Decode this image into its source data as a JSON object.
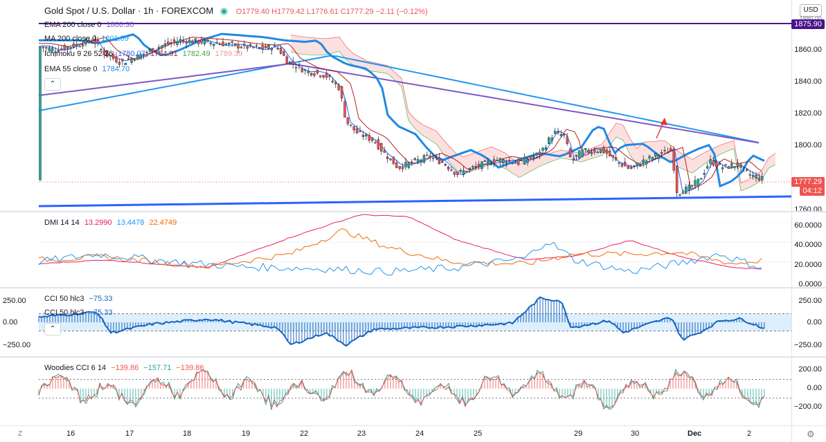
{
  "symbol": {
    "name": "Gold Spot / U.S. Dollar · 1h · FOREXCOM"
  },
  "ohlc": {
    "o": "O1779.40",
    "h": "H1779.42",
    "l": "L1776.61",
    "c": "C1777.29",
    "chg": "−2.11 (−0.12%)"
  },
  "indicators": {
    "ema200": {
      "label": "EMA 200 close 0",
      "value": "1800.30"
    },
    "ma200": {
      "label": "MA 200 close 0",
      "value": "1801.09"
    },
    "ichimoku": {
      "label": "Ichimoku 9 26 52 26",
      "v1": "1780.07",
      "v2": "1784.91",
      "v3": "1782.49",
      "v4": "1789.39"
    },
    "ema55": {
      "label": "EMA 55 close 0",
      "value": "1784.70"
    }
  },
  "price_axis": {
    "currency": "USD",
    "labels": [
      "1860.00",
      "1840.00",
      "1820.00",
      "1800.00",
      "1760.00"
    ],
    "tag_top": "1875.90",
    "tag_price": "1777.29",
    "tag_timer": "04:12",
    "partial": "1880.00"
  },
  "dmi": {
    "label": "DMI 14 14",
    "v1": "13.2990",
    "v2": "13.4478",
    "v3": "22.4749",
    "axis": [
      "60.0000",
      "40.0000",
      "20.0000",
      "0.0000"
    ]
  },
  "cci": {
    "label1": "CCI 50 hlc3",
    "value1": "−75.33",
    "label2": "CCI 50 hlc3",
    "value2": "−75.33",
    "axis_left": [
      "250.00",
      "0.00",
      "−250.00"
    ],
    "axis_right": [
      "250.00",
      "0.00",
      "−250.00"
    ]
  },
  "woodies": {
    "label": "Woodies CCI 6 14",
    "v1": "−139.86",
    "v2": "−157.71",
    "v3": "−139.86",
    "axis": [
      "200.00",
      "0.00",
      "−200.00"
    ]
  },
  "time_axis": [
    "16",
    "17",
    "18",
    "19",
    "22",
    "23",
    "24",
    "25",
    "29",
    "30",
    "Dec",
    "2"
  ],
  "corners": {
    "left": "Z",
    "right": "⚙"
  },
  "colors": {
    "up": "#26a69a",
    "down": "#ef5350",
    "ema200": "#7e57c2",
    "ma200": "#2196f3",
    "ema55": "#1e88e5",
    "trend": "#2962ff",
    "cloud": "#fbd3d3"
  }
}
